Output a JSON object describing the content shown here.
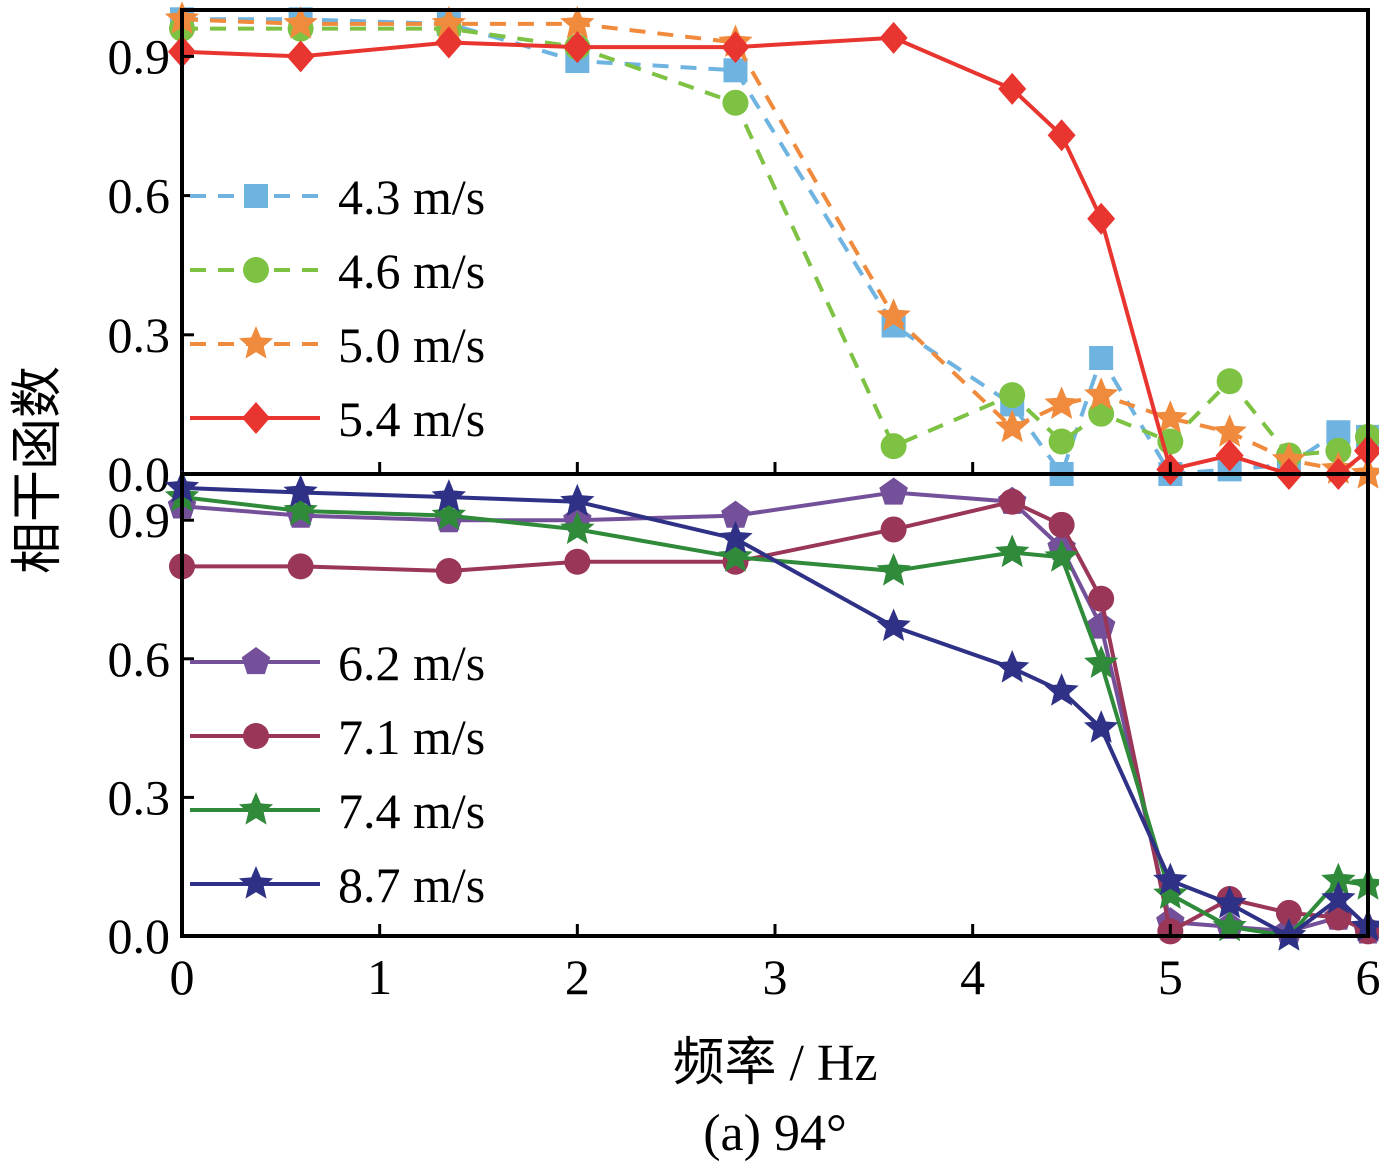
{
  "chart_data": [
    {
      "type": "line",
      "panel": "top",
      "ylim": [
        0,
        1.0
      ],
      "xlim": [
        0,
        6
      ],
      "yticks": [
        "0.0",
        "0.3",
        "0.6",
        "0.9"
      ],
      "legend_position": "left",
      "series": [
        {
          "name": "4.3 m/s",
          "color": "#6fb4e1",
          "marker": "square",
          "dash": true,
          "x": [
            0,
            0.6,
            1.35,
            2.0,
            2.8,
            3.6,
            4.2,
            4.45,
            4.65,
            5.0,
            5.3,
            5.6,
            5.85,
            6.0
          ],
          "y": [
            0.98,
            0.98,
            0.97,
            0.89,
            0.87,
            0.32,
            0.15,
            0.0,
            0.25,
            0.0,
            0.01,
            0.02,
            0.09,
            0.08
          ]
        },
        {
          "name": "4.6 m/s",
          "color": "#7dc243",
          "marker": "circle",
          "dash": true,
          "x": [
            0,
            0.6,
            1.35,
            2.0,
            2.8,
            3.6,
            4.2,
            4.45,
            4.65,
            5.0,
            5.3,
            5.6,
            5.85,
            6.0
          ],
          "y": [
            0.96,
            0.96,
            0.96,
            0.92,
            0.8,
            0.06,
            0.17,
            0.07,
            0.13,
            0.07,
            0.2,
            0.04,
            0.05,
            0.08
          ]
        },
        {
          "name": "5.0 m/s",
          "color": "#f08a3c",
          "marker": "star",
          "dash": true,
          "x": [
            0,
            0.6,
            1.35,
            2.0,
            2.8,
            3.6,
            4.2,
            4.45,
            4.65,
            5.0,
            5.3,
            5.6,
            5.85,
            6.0
          ],
          "y": [
            0.98,
            0.97,
            0.97,
            0.97,
            0.93,
            0.34,
            0.1,
            0.15,
            0.17,
            0.12,
            0.09,
            0.03,
            0.01,
            0.0
          ]
        },
        {
          "name": "5.4 m/s",
          "color": "#e8352f",
          "marker": "diamond",
          "dash": false,
          "x": [
            0,
            0.6,
            1.35,
            2.0,
            2.8,
            3.6,
            4.2,
            4.45,
            4.65,
            5.0,
            5.3,
            5.6,
            5.85,
            6.0
          ],
          "y": [
            0.91,
            0.9,
            0.93,
            0.92,
            0.92,
            0.94,
            0.83,
            0.73,
            0.55,
            0.01,
            0.04,
            0.0,
            0.0,
            0.05
          ]
        }
      ]
    },
    {
      "type": "line",
      "panel": "bottom",
      "ylim": [
        0,
        1.0
      ],
      "xlim": [
        0,
        6
      ],
      "xticks": [
        "0",
        "1",
        "2",
        "3",
        "4",
        "5",
        "6"
      ],
      "yticks": [
        "0.0",
        "0.3",
        "0.6",
        "0.9"
      ],
      "legend_position": "left",
      "series": [
        {
          "name": "6.2 m/s",
          "color": "#74509a",
          "marker": "pentagon",
          "dash": false,
          "x": [
            0,
            0.6,
            1.35,
            2.0,
            2.8,
            3.6,
            4.2,
            4.45,
            4.65,
            5.0,
            5.3,
            5.6,
            5.85,
            6.0
          ],
          "y": [
            0.93,
            0.91,
            0.9,
            0.9,
            0.91,
            0.96,
            0.94,
            0.84,
            0.67,
            0.03,
            0.02,
            0.01,
            0.04,
            0.01
          ]
        },
        {
          "name": "7.1 m/s",
          "color": "#9a3658",
          "marker": "circle",
          "dash": false,
          "x": [
            0,
            0.6,
            1.35,
            2.0,
            2.8,
            3.6,
            4.2,
            4.45,
            4.65,
            5.0,
            5.3,
            5.6,
            5.85,
            6.0
          ],
          "y": [
            0.8,
            0.8,
            0.79,
            0.81,
            0.81,
            0.88,
            0.94,
            0.89,
            0.73,
            0.01,
            0.08,
            0.05,
            0.04,
            0.01
          ]
        },
        {
          "name": "7.4 m/s",
          "color": "#2f8a3a",
          "marker": "star",
          "dash": false,
          "x": [
            0,
            0.6,
            1.35,
            2.0,
            2.8,
            3.6,
            4.2,
            4.45,
            4.65,
            5.0,
            5.3,
            5.6,
            5.85,
            6.0
          ],
          "y": [
            0.95,
            0.92,
            0.91,
            0.88,
            0.82,
            0.79,
            0.83,
            0.82,
            0.59,
            0.09,
            0.02,
            0.0,
            0.12,
            0.11
          ]
        },
        {
          "name": "8.7 m/s",
          "color": "#2e3186",
          "marker": "star",
          "dash": false,
          "x": [
            0,
            0.6,
            1.35,
            2.0,
            2.8,
            3.6,
            4.2,
            4.45,
            4.65,
            5.0,
            5.3,
            5.6,
            5.85,
            6.0
          ],
          "y": [
            0.97,
            0.96,
            0.95,
            0.94,
            0.86,
            0.67,
            0.58,
            0.53,
            0.45,
            0.12,
            0.07,
            0.0,
            0.08,
            0.02
          ]
        }
      ]
    }
  ],
  "axis": {
    "ylabel": "相干函数",
    "xlabel": "频率 / Hz",
    "caption": "(a) 94°"
  }
}
